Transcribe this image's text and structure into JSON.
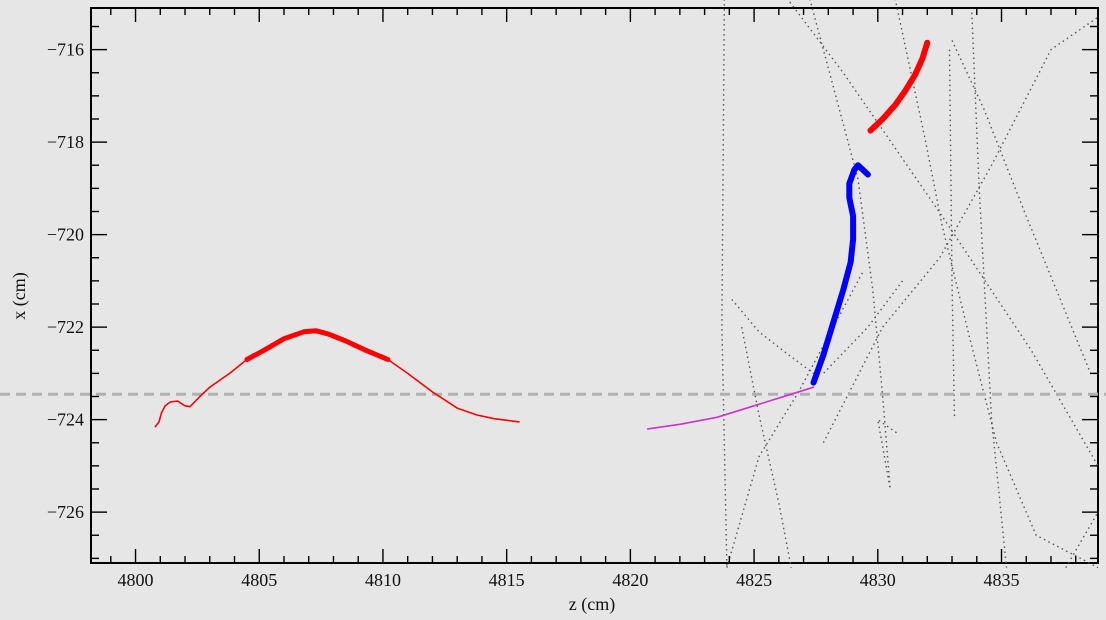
{
  "chart_data": {
    "type": "scatter",
    "title": "",
    "xlabel": "z (cm)",
    "ylabel": "x (cm)",
    "xlim": [
      4798.2,
      4838.9
    ],
    "ylim": [
      -727.1,
      -715.1
    ],
    "x_ticks": [
      4800,
      4805,
      4810,
      4815,
      4820,
      4825,
      4830,
      4835
    ],
    "y_ticks": [
      -716,
      -718,
      -720,
      -722,
      -724,
      -726
    ],
    "x_tick_labels": [
      "4800",
      "4805",
      "4810",
      "4815",
      "4820",
      "4825",
      "4830",
      "4835"
    ],
    "y_tick_labels": [
      "−716",
      "−718",
      "−720",
      "−722",
      "−724",
      "−726"
    ],
    "grid": false,
    "reference_line": {
      "y": -723.45,
      "style": "dashed",
      "color": "#b0b0b0"
    },
    "series": [
      {
        "color": "#ff0000",
        "style": "line",
        "x": [
          4800.8,
          4800.95,
          4801.05,
          4801.2,
          4801.4,
          4801.7,
          4802.0,
          4802.2,
          4802.6,
          4803.0,
          4803.8,
          4804.5,
          4805.2,
          4806.0,
          4806.8,
          4807.3,
          4807.8,
          4808.5,
          4809.3,
          4810.2,
          4811.0,
          4812.0,
          4813.0,
          4813.8,
          4814.5,
          4815.5
        ],
        "y": [
          -724.15,
          -724.05,
          -723.85,
          -723.7,
          -723.62,
          -723.6,
          -723.7,
          -723.72,
          -723.5,
          -723.3,
          -723.0,
          -722.7,
          -722.5,
          -722.25,
          -722.1,
          -722.08,
          -722.15,
          -722.3,
          -722.5,
          -722.7,
          -723.0,
          -723.4,
          -723.75,
          -723.9,
          -723.98,
          -724.05
        ],
        "emphasis_range": [
          4804.5,
          4810.3
        ]
      },
      {
        "color": "#cc33cc",
        "style": "line",
        "x": [
          4820.7,
          4822.0,
          4823.5,
          4825.0,
          4826.5,
          4827.4
        ],
        "y": [
          -724.2,
          -724.1,
          -723.95,
          -723.7,
          -723.45,
          -723.3
        ]
      },
      {
        "color": "#0000ff",
        "style": "thick",
        "x": [
          4827.4,
          4827.8,
          4828.2,
          4828.6,
          4828.9,
          4829.0,
          4829.0,
          4828.85,
          4828.85,
          4829.05,
          4829.2,
          4829.6
        ],
        "y": [
          -723.2,
          -722.6,
          -721.9,
          -721.2,
          -720.6,
          -720.1,
          -719.6,
          -719.2,
          -718.9,
          -718.6,
          -718.5,
          -718.7
        ]
      },
      {
        "color": "#ff0000",
        "style": "thick",
        "x": [
          4829.7,
          4830.2,
          4830.7,
          4831.1,
          4831.5,
          4831.8,
          4832.0
        ],
        "y": [
          -717.75,
          -717.5,
          -717.2,
          -716.9,
          -716.55,
          -716.2,
          -715.85
        ]
      }
    ],
    "dotted_segments": [
      {
        "x": [
          4827.2,
          4829.2,
          4829.8,
          4830.2,
          4830.5,
          4830.0,
          4830.8
        ],
        "y": [
          -714.8,
          -718.8,
          -721.2,
          -723.5,
          -725.5,
          -724.0,
          -724.3
        ]
      },
      {
        "x": [
          4826.2,
          4828.6,
          4832.6,
          4836.2,
          4838.9
        ],
        "y": [
          -714.8,
          -716.5,
          -719.6,
          -722.5,
          -725.0
        ]
      },
      {
        "x": [
          4823.8,
          4823.7,
          4823.9
        ],
        "y": [
          -714.8,
          -722.0,
          -727.2
        ]
      },
      {
        "x": [
          4824.1,
          4825.2,
          4826.4,
          4827.4
        ],
        "y": [
          -721.4,
          -722.1,
          -722.6,
          -723.0
        ]
      },
      {
        "x": [
          4832.9,
          4833.0,
          4833.1
        ],
        "y": [
          -716.0,
          -721.0,
          -724.0
        ]
      },
      {
        "x": [
          4833.0,
          4834.3,
          4836.0,
          4838.6
        ],
        "y": [
          -715.8,
          -717.3,
          -719.6,
          -723.0
        ]
      },
      {
        "x": [
          4833.8,
          4834.1,
          4834.6,
          4835.2
        ],
        "y": [
          -715.2,
          -719.0,
          -724.0,
          -727.2
        ]
      },
      {
        "x": [
          4830.7,
          4831.9,
          4832.6,
          4833.7,
          4834.8,
          4836.4,
          4838.9
        ],
        "y": [
          -714.9,
          -717.9,
          -719.8,
          -722.2,
          -724.5,
          -726.5,
          -727.2
        ]
      },
      {
        "x": [
          4823.9,
          4825.2,
          4826.8,
          4829.4
        ],
        "y": [
          -727.2,
          -724.8,
          -723.4,
          -720.8
        ]
      },
      {
        "x": [
          4824.5,
          4825.2,
          4826.0,
          4826.5
        ],
        "y": [
          -722.0,
          -723.9,
          -725.8,
          -727.2
        ]
      },
      {
        "x": [
          4827.8,
          4830.2,
          4832.5,
          4834.6,
          4837.0,
          4838.9
        ],
        "y": [
          -724.5,
          -722.0,
          -720.5,
          -718.5,
          -716.0,
          -715.3
        ]
      },
      {
        "x": [
          4837.6,
          4838.9
        ],
        "y": [
          -727.2,
          -726.0
        ]
      },
      {
        "x": [
          4831.0,
          4829.6,
          4827.8
        ],
        "y": [
          -721.0,
          -722.0,
          -723.0
        ]
      }
    ]
  }
}
